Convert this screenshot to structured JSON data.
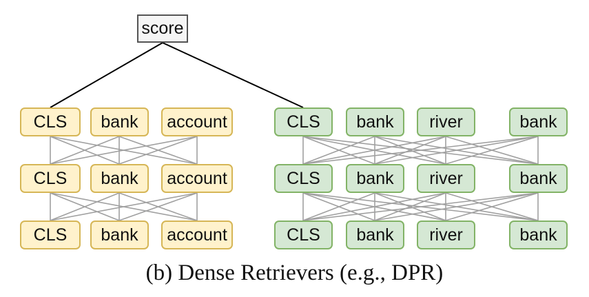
{
  "score_label": "score",
  "left_encoder": {
    "rows": [
      [
        "CLS",
        "bank",
        "account"
      ],
      [
        "CLS",
        "bank",
        "account"
      ],
      [
        "CLS",
        "bank",
        "account"
      ]
    ]
  },
  "right_encoder": {
    "rows": [
      [
        "CLS",
        "bank",
        "river",
        "bank"
      ],
      [
        "CLS",
        "bank",
        "river",
        "bank"
      ],
      [
        "CLS",
        "bank",
        "river",
        "bank"
      ]
    ]
  },
  "caption": "(b) Dense Retrievers (e.g., DPR)",
  "colors": {
    "left_fill": "#fff2cc",
    "left_border": "#d6b656",
    "right_fill": "#d5e8d4",
    "right_border": "#82b366",
    "score_fill": "#f5f5f5",
    "score_border": "#555555",
    "edge": "#a0a0a0",
    "score_edge": "#000000"
  }
}
